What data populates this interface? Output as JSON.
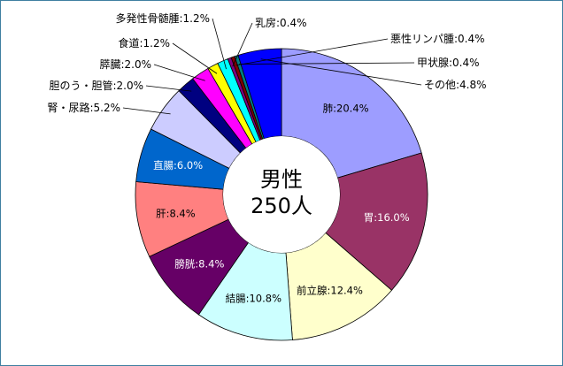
{
  "chart_data": {
    "type": "donut",
    "center_label": [
      "男性",
      "250人"
    ],
    "slices": [
      {
        "label": "肺",
        "value": 20.4,
        "color": "#9d9dff"
      },
      {
        "label": "胃",
        "value": 16.0,
        "color": "#993366"
      },
      {
        "label": "前立腺",
        "value": 12.4,
        "color": "#ffffcc"
      },
      {
        "label": "結腸",
        "value": 10.8,
        "color": "#ccffff"
      },
      {
        "label": "膀胱",
        "value": 8.4,
        "color": "#660066"
      },
      {
        "label": "肝",
        "value": 8.4,
        "color": "#ff8080"
      },
      {
        "label": "直腸",
        "value": 6.0,
        "color": "#0066cc"
      },
      {
        "label": "腎・尿路",
        "value": 5.2,
        "color": "#ccccff"
      },
      {
        "label": "胆のう・胆管",
        "value": 2.0,
        "color": "#000080"
      },
      {
        "label": "膵臓",
        "value": 2.0,
        "color": "#ff00ff"
      },
      {
        "label": "食道",
        "value": 1.2,
        "color": "#ffff00"
      },
      {
        "label": "多発性骨髄腫",
        "value": 1.2,
        "color": "#00ffff"
      },
      {
        "label": "乳房",
        "value": 0.4,
        "color": "#800080"
      },
      {
        "label": "悪性リンパ腫",
        "value": 0.4,
        "color": "#800000"
      },
      {
        "label": "甲状腺",
        "value": 0.4,
        "color": "#008080"
      },
      {
        "label": "その他",
        "value": 4.8,
        "color": "#0000ff"
      }
    ],
    "value_suffix": "%",
    "label_separator": ":"
  }
}
